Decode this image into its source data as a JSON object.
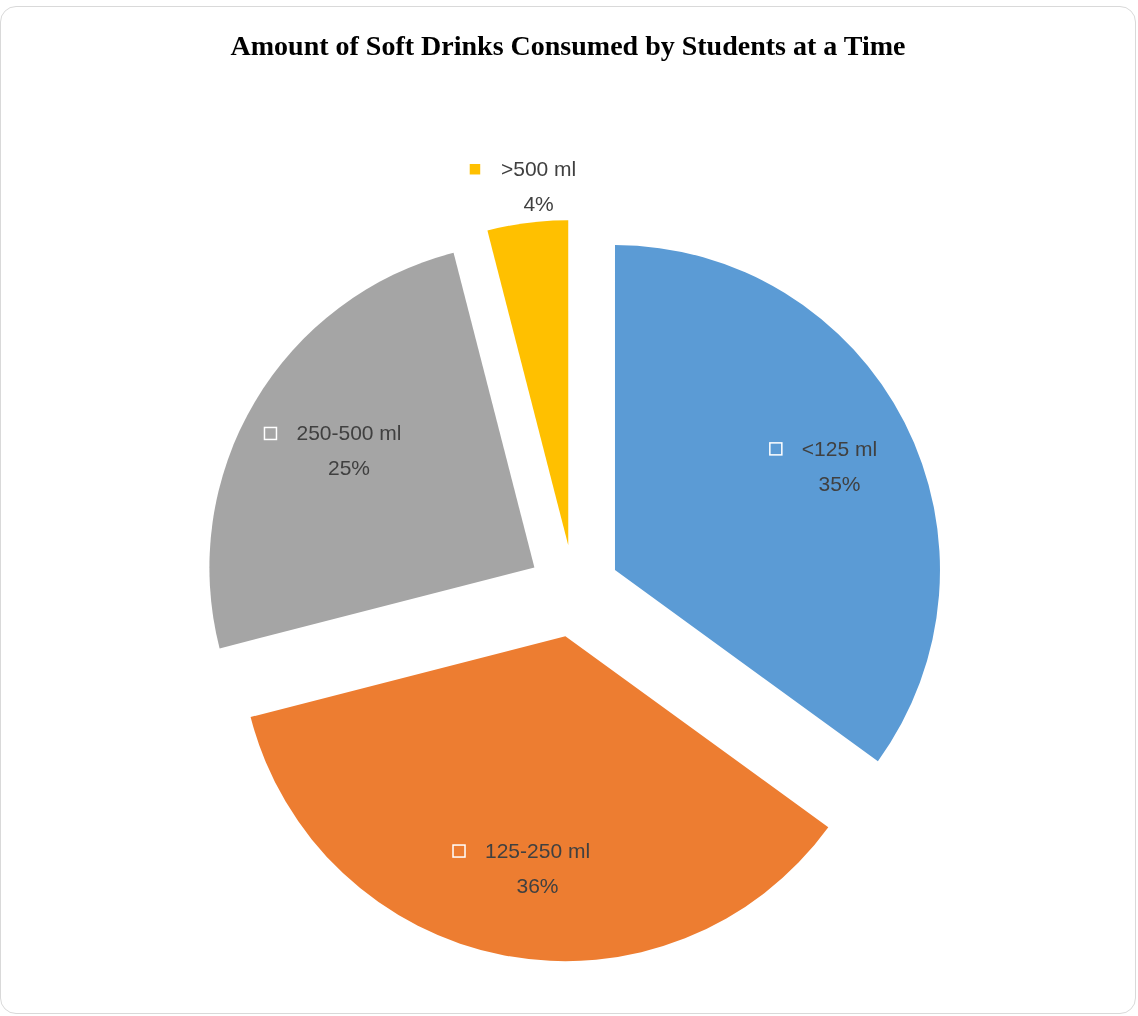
{
  "chart_data": {
    "type": "pie",
    "title": "Amount of Soft Drinks Consumed by Students at a Time",
    "categories": [
      "<125 ml",
      "125-250 ml",
      "250-500 ml",
      ">500 ml"
    ],
    "values": [
      35,
      36,
      25,
      4
    ],
    "colors": [
      "#5b9bd5",
      "#ed7d31",
      "#a5a5a5",
      "#ffc000"
    ],
    "value_labels": [
      "35%",
      "36%",
      "25%",
      "4%"
    ],
    "legend": "center"
  }
}
